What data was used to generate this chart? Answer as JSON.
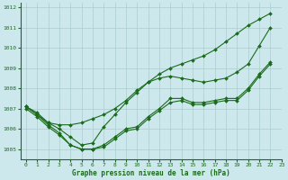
{
  "background_color": "#cce8ec",
  "grid_color": "#aacccc",
  "line_color": "#1a6b1a",
  "marker_color": "#1a6b1a",
  "xlabel": "Graphe pression niveau de la mer (hPa)",
  "xlim": [
    -0.5,
    23
  ],
  "ylim": [
    1004.5,
    1012.2
  ],
  "yticks": [
    1005,
    1006,
    1007,
    1008,
    1009,
    1010,
    1011,
    1012
  ],
  "xticks": [
    0,
    1,
    2,
    3,
    4,
    5,
    6,
    7,
    8,
    9,
    10,
    11,
    12,
    13,
    14,
    15,
    16,
    17,
    18,
    19,
    20,
    21,
    22,
    23
  ],
  "series_x": [
    0,
    1,
    2,
    3,
    4,
    5,
    6,
    7,
    8,
    9,
    10,
    11,
    12,
    13,
    14,
    15,
    16,
    17,
    18,
    19,
    20,
    21,
    22
  ],
  "series": [
    [
      1007.1,
      1006.7,
      1006.2,
      1005.8,
      1005.2,
      1005.0,
      1005.0,
      1005.2,
      1005.6,
      1006.0,
      1006.1,
      1006.6,
      1007.0,
      1007.5,
      1007.5,
      1007.3,
      1007.3,
      1007.4,
      1007.5,
      1007.5,
      1008.0,
      1008.7,
      1009.3
    ],
    [
      1007.0,
      1006.6,
      1006.1,
      1005.7,
      1005.2,
      1005.0,
      1005.0,
      1005.1,
      1005.5,
      1005.9,
      1006.0,
      1006.5,
      1006.9,
      1007.3,
      1007.4,
      1007.2,
      1007.2,
      1007.3,
      1007.4,
      1007.4,
      1007.9,
      1008.6,
      1009.2
    ],
    [
      1007.1,
      1006.8,
      1006.3,
      1006.0,
      1005.6,
      1005.2,
      1005.3,
      1006.1,
      1006.7,
      1007.3,
      1007.8,
      1008.3,
      1008.5,
      1008.6,
      1008.5,
      1008.4,
      1008.3,
      1008.4,
      1008.5,
      1008.8,
      1009.2,
      1010.1,
      1011.0
    ],
    [
      1007.1,
      1006.7,
      1006.3,
      1006.2,
      1006.2,
      1006.3,
      1006.5,
      1006.7,
      1007.0,
      1007.4,
      1007.9,
      1008.3,
      1008.7,
      1009.0,
      1009.2,
      1009.4,
      1009.6,
      1009.9,
      1010.3,
      1010.7,
      1011.1,
      1011.4,
      1011.7
    ]
  ]
}
